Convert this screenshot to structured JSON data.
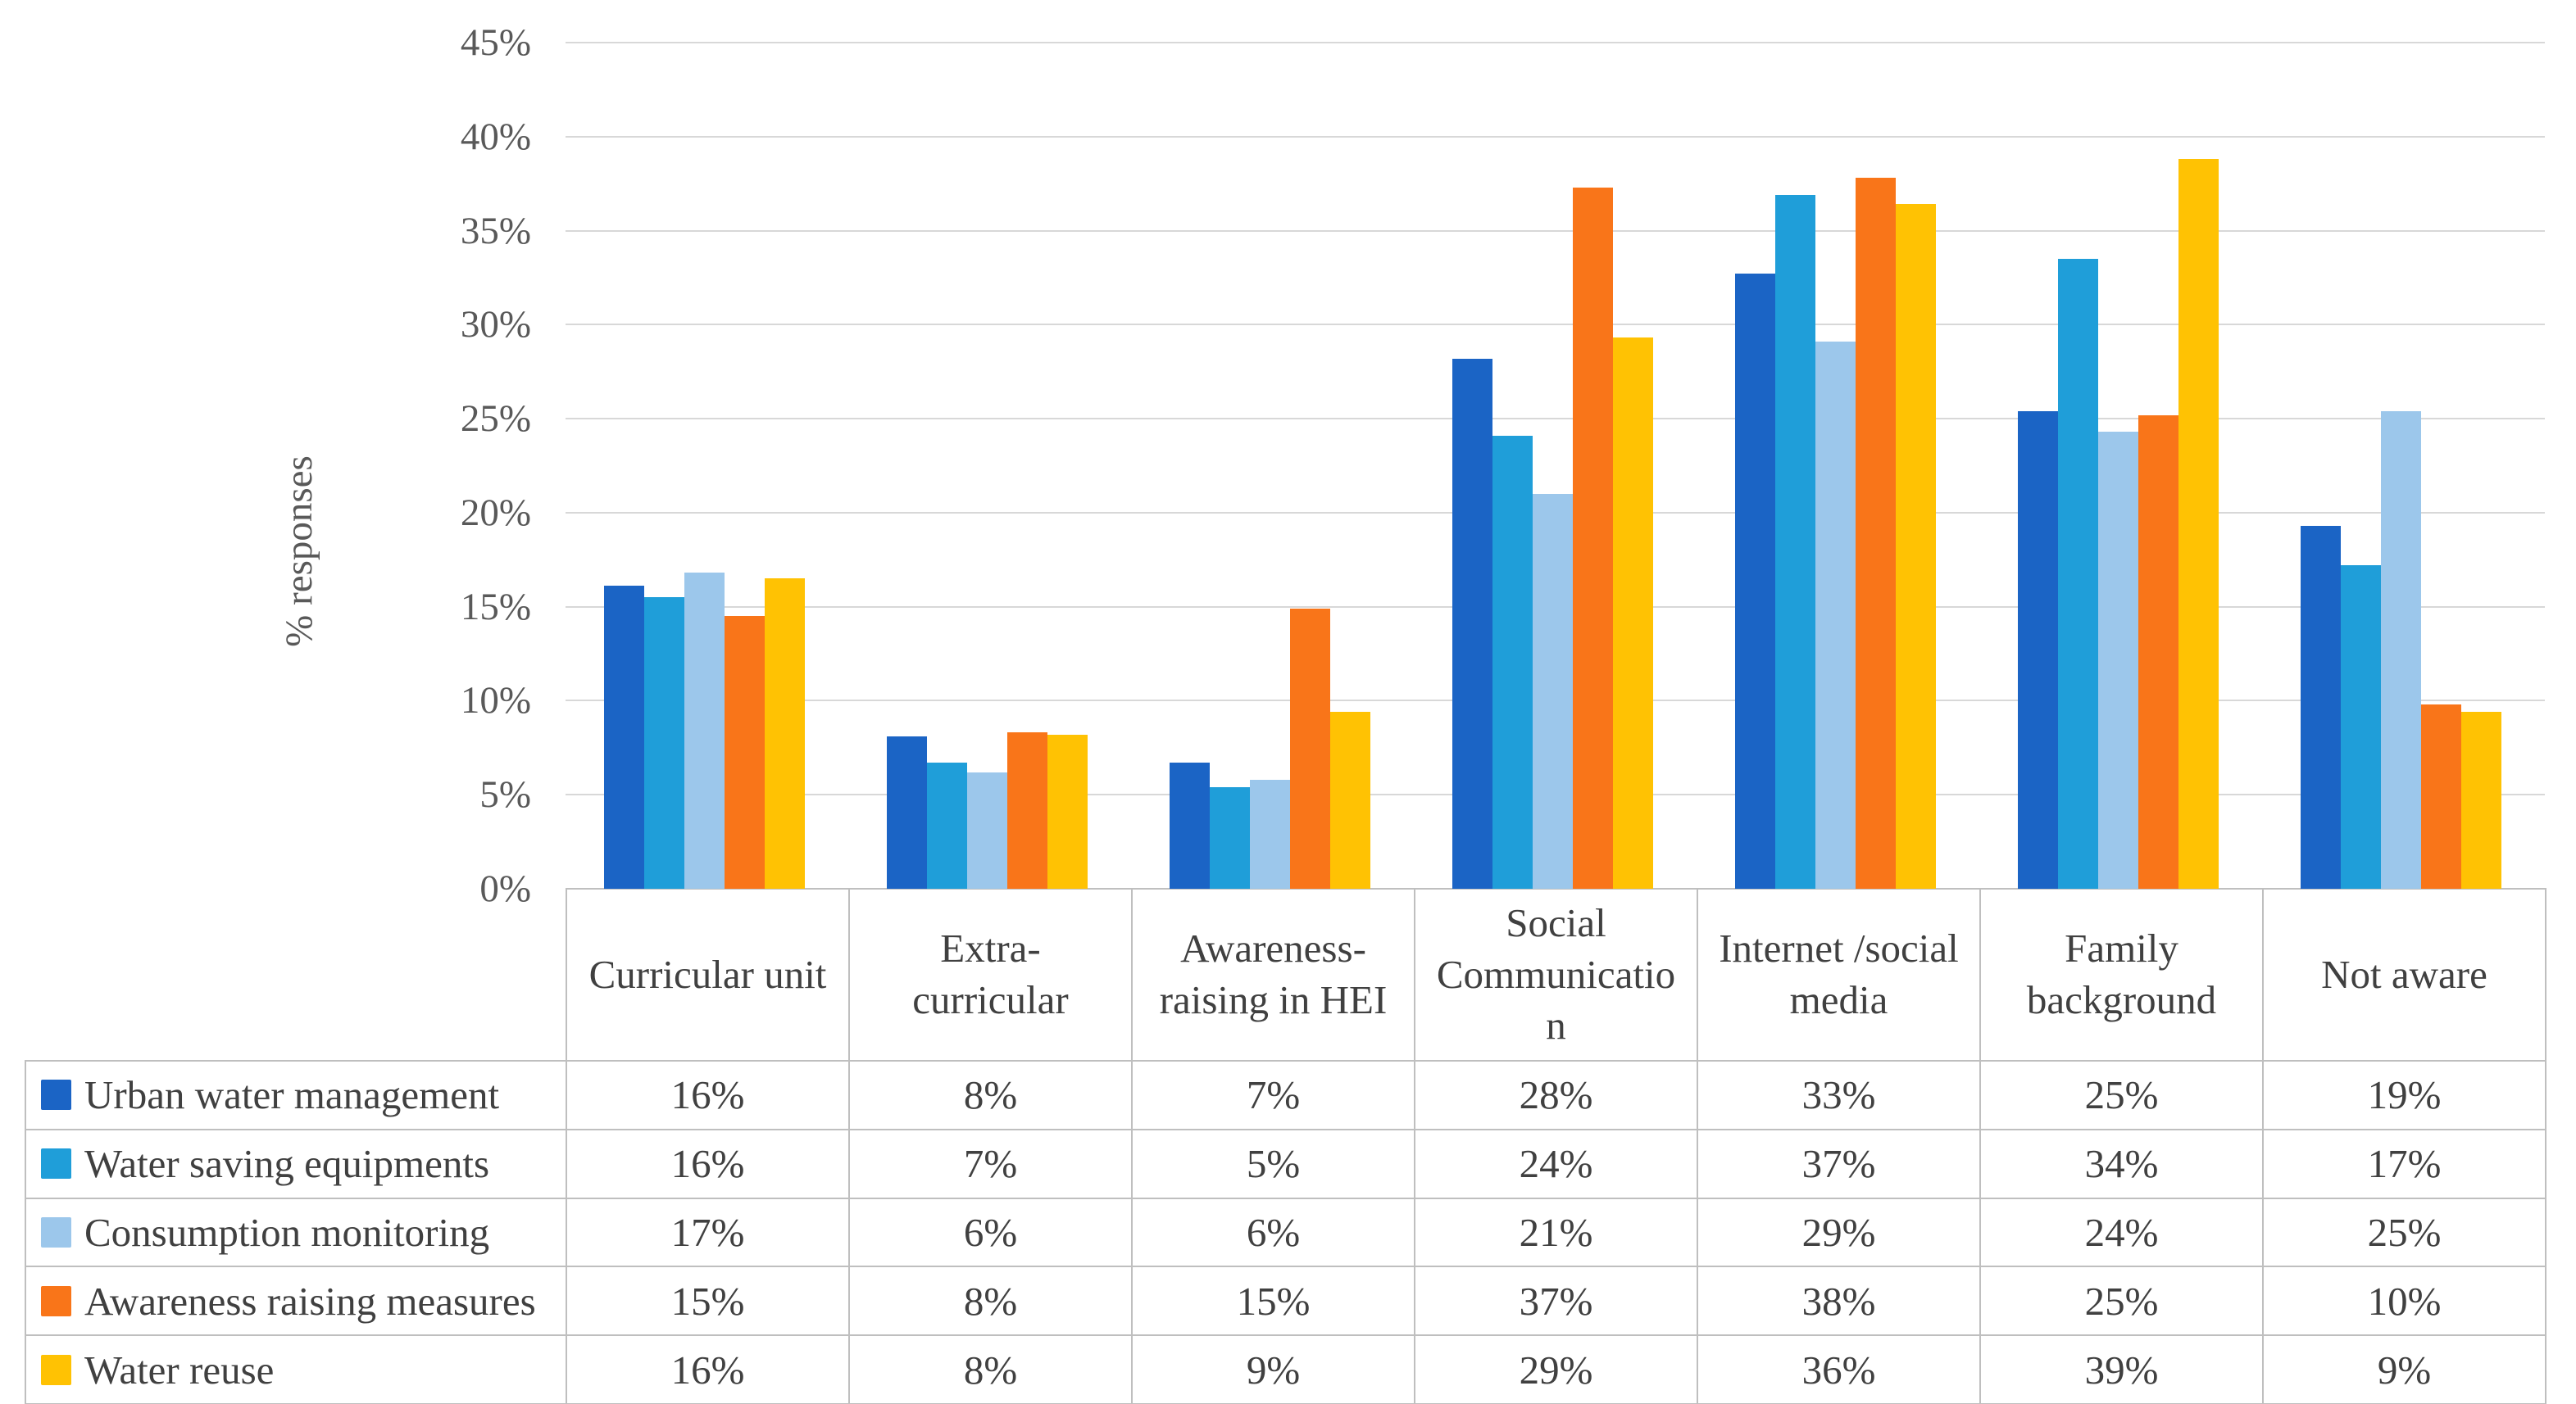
{
  "chart": {
    "y_axis_title": "% responses",
    "y_ticks": [
      "45%",
      "40%",
      "35%",
      "30%",
      "25%",
      "20%",
      "15%",
      "10%",
      "5%",
      "0%"
    ]
  },
  "chart_data": {
    "type": "bar",
    "title": "",
    "xlabel": "",
    "ylabel": "% responses",
    "ylim": [
      0,
      45
    ],
    "grid": "horizontal",
    "legend_position": "table-left",
    "categories": [
      "Curricular unit",
      "Extra-curricular",
      "Awareness-raising in HEI",
      "Social Communication",
      "Internet /social media",
      "Family background",
      "Not aware"
    ],
    "series": [
      {
        "name": "Urban water management",
        "color": "#1b64c5",
        "values": [
          16.1,
          8.1,
          6.7,
          28.2,
          32.7,
          25.4,
          19.3
        ],
        "table_values": [
          "16%",
          "8%",
          "7%",
          "28%",
          "33%",
          "25%",
          "19%"
        ]
      },
      {
        "name": "Water saving equipments",
        "color": "#1f9ed9",
        "values": [
          15.5,
          6.7,
          5.4,
          24.1,
          36.9,
          33.5,
          17.2
        ],
        "table_values": [
          "16%",
          "7%",
          "5%",
          "24%",
          "37%",
          "34%",
          "17%"
        ]
      },
      {
        "name": "Consumption monitoring",
        "color": "#9cc7eb",
        "values": [
          16.8,
          6.2,
          5.8,
          21.0,
          29.1,
          24.3,
          25.4
        ],
        "table_values": [
          "17%",
          "6%",
          "6%",
          "21%",
          "29%",
          "24%",
          "25%"
        ]
      },
      {
        "name": "Awareness raising measures",
        "color": "#f97519",
        "values": [
          14.5,
          8.3,
          14.9,
          37.3,
          37.8,
          25.2,
          9.8
        ],
        "table_values": [
          "15%",
          "8%",
          "15%",
          "37%",
          "38%",
          "25%",
          "10%"
        ]
      },
      {
        "name": "Water reuse",
        "color": "#ffc203",
        "values": [
          16.5,
          8.2,
          9.4,
          29.3,
          36.4,
          38.8,
          9.4
        ],
        "table_values": [
          "16%",
          "8%",
          "9%",
          "29%",
          "36%",
          "39%",
          "9%"
        ]
      }
    ]
  },
  "table": {
    "header": [
      "Curricular unit",
      "Extra-\ncurricular",
      "Awareness-\nraising in HEI",
      "Social\nCommunicatio\nn",
      "Internet /social\nmedia",
      "Family\nbackground",
      "Not aware"
    ]
  }
}
